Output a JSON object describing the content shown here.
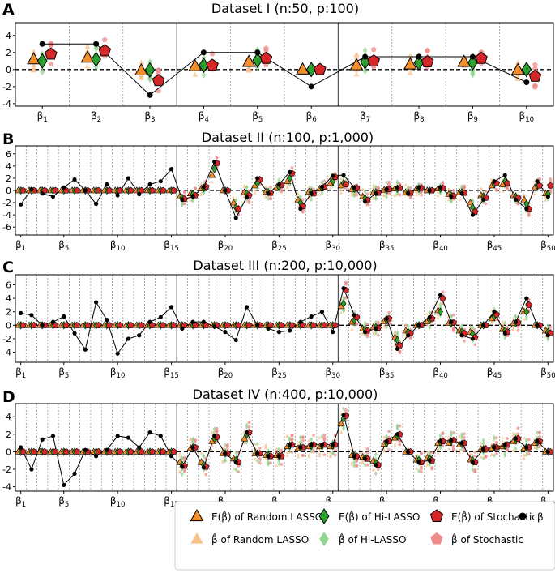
{
  "colors": {
    "random_lasso_mean": "#f28e2b",
    "random_lasso_est": "#f9c18c",
    "hi_lasso_mean": "#2ca02c",
    "hi_lasso_est": "#8fd48f",
    "stochastic_mean": "#d62728",
    "stochastic_est": "#f08a8a",
    "beta": "#000000"
  },
  "legend": [
    {
      "label": "E(β̂) of Random LASSO",
      "icon": "triangle-mean-icon",
      "series": "random_lasso_mean"
    },
    {
      "label": "E(β̂) of Hi-LASSO",
      "icon": "diamond-mean-icon",
      "series": "hi_lasso_mean"
    },
    {
      "label": "E(β̂) of Stochastic",
      "icon": "pentagon-mean-icon",
      "series": "stochastic_mean"
    },
    {
      "label": "β",
      "icon": "circle-icon",
      "series": "beta"
    },
    {
      "label": "β̂ of Random LASSO",
      "icon": "triangle-est-icon",
      "series": "random_lasso_est"
    },
    {
      "label": "β̂ of Hi-LASSO",
      "icon": "diamond-est-icon",
      "series": "hi_lasso_est"
    },
    {
      "label": "β̂ of Stochastic",
      "icon": "pentagon-est-icon",
      "series": "stochastic_est"
    }
  ],
  "chart_data": [
    {
      "panel": "A",
      "title": "Dataset I (n:50, p:100)",
      "type": "scatter",
      "n_coef": 10,
      "ylim": [
        -4.3,
        5.5
      ],
      "yticks": [
        -4,
        -2,
        0,
        2,
        4
      ],
      "xtick_indices": [
        1,
        2,
        3,
        4,
        5,
        6,
        7,
        8,
        9,
        10
      ],
      "group_separators_after": [
        3,
        6
      ],
      "beta": [
        3,
        3,
        -3,
        2,
        2,
        -2,
        1.5,
        1.5,
        1.5,
        -1.5
      ],
      "random_lasso_mean": [
        1.2,
        1.4,
        -0.1,
        0.4,
        0.9,
        0.0,
        0.5,
        0.6,
        0.9,
        -0.05
      ],
      "hi_lasso_mean": [
        1.0,
        1.2,
        -0.05,
        0.5,
        1.1,
        0.0,
        0.9,
        0.8,
        0.8,
        0.0
      ],
      "stochastic_mean": [
        1.8,
        2.2,
        -1.3,
        0.5,
        1.3,
        0.0,
        1.0,
        0.9,
        1.3,
        -0.8
      ]
    },
    {
      "panel": "B",
      "title": "Dataset II (n:100, p:1,000)",
      "type": "scatter",
      "n_coef": 50,
      "ylim": [
        -7.3,
        7.3
      ],
      "yticks": [
        -6,
        -4,
        -2,
        0,
        2,
        4,
        6
      ],
      "xtick_indices": [
        1,
        5,
        10,
        15,
        20,
        25,
        30,
        35,
        40,
        45,
        50
      ],
      "group_separators_after": [
        15,
        30
      ],
      "beta": [
        -2.3,
        0.2,
        -0.5,
        -1.0,
        0.5,
        1.8,
        0.0,
        -2.2,
        1.0,
        -0.8,
        2.0,
        -0.6,
        1.0,
        1.5,
        3.5,
        -1.5,
        -1.0,
        0.6,
        4.7,
        0.0,
        -4.5,
        -1.1,
        2.0,
        -0.5,
        1.0,
        3.0,
        -3.0,
        -0.5,
        0.6,
        2.4,
        2.5,
        0.5,
        -1.8,
        -0.5,
        0.2,
        0.5,
        -0.5,
        0.5,
        0.0,
        0.5,
        -1.0,
        -0.5,
        -4.0,
        -1.5,
        1.5,
        2.5,
        -1.5,
        -3.0,
        1.5,
        -1.0
      ],
      "random_lasso_mean": [
        0.0,
        0.0,
        0.0,
        0.0,
        0.0,
        0.0,
        0.0,
        0.0,
        0.0,
        0.0,
        0.0,
        0.0,
        0.0,
        0.0,
        0.0,
        -1.0,
        -0.5,
        0.3,
        2.5,
        0.0,
        -2.0,
        -0.3,
        0.8,
        -0.2,
        0.5,
        1.5,
        -1.5,
        -0.2,
        0.3,
        1.2,
        0.8,
        0.2,
        -1.0,
        -0.3,
        0.1,
        0.3,
        -0.3,
        0.3,
        0.0,
        0.3,
        -0.6,
        -0.3,
        -2.0,
        -0.8,
        0.8,
        1.0,
        -0.8,
        -1.5,
        0.5,
        -0.5
      ],
      "hi_lasso_mean": [
        0.0,
        0.0,
        0.0,
        0.0,
        0.0,
        0.0,
        0.0,
        0.0,
        0.0,
        0.0,
        0.0,
        0.0,
        0.0,
        0.0,
        0.0,
        -1.2,
        -0.6,
        0.4,
        3.5,
        0.0,
        -2.8,
        -0.5,
        1.2,
        -0.3,
        0.6,
        2.0,
        -2.0,
        -0.3,
        0.4,
        1.5,
        1.2,
        0.3,
        -1.3,
        -0.3,
        0.1,
        0.3,
        -0.3,
        0.3,
        0.0,
        0.3,
        -0.8,
        -0.3,
        -2.8,
        -1.0,
        1.0,
        1.5,
        -1.0,
        -2.2,
        0.8,
        -0.6
      ],
      "stochastic_mean": [
        0.0,
        0.0,
        0.0,
        0.0,
        0.0,
        0.0,
        0.0,
        0.0,
        0.0,
        0.0,
        0.0,
        0.0,
        0.0,
        0.0,
        0.0,
        -1.4,
        -0.8,
        0.6,
        4.5,
        0.0,
        -3.0,
        -0.8,
        1.8,
        -0.4,
        0.9,
        2.8,
        -2.6,
        -0.5,
        0.6,
        2.2,
        1.0,
        0.4,
        -1.6,
        -0.4,
        0.2,
        0.4,
        -0.4,
        0.4,
        0.0,
        0.4,
        -0.9,
        -0.4,
        -3.5,
        -1.2,
        1.2,
        1.2,
        -1.2,
        -3.0,
        0.8,
        0.8
      ]
    },
    {
      "panel": "C",
      "title": "Dataset III (n:200, p:10,000)",
      "type": "scatter",
      "n_coef": 50,
      "ylim": [
        -5.5,
        7.5
      ],
      "yticks": [
        -4,
        -2,
        0,
        2,
        4,
        6
      ],
      "xtick_indices": [
        1,
        5,
        10,
        15,
        20,
        25,
        30,
        35,
        40,
        45,
        50
      ],
      "group_separators_after": [
        15,
        30
      ],
      "beta": [
        1.8,
        1.5,
        0.0,
        0.5,
        1.3,
        -1.2,
        -3.6,
        3.4,
        0.8,
        -4.2,
        -2.0,
        -1.5,
        0.5,
        1.2,
        2.7,
        -0.5,
        0.5,
        0.5,
        -0.2,
        -1.0,
        -2.2,
        2.7,
        0.0,
        -0.5,
        -1.0,
        -0.8,
        0.5,
        1.3,
        2.0,
        -1.0,
        5.5,
        1.5,
        -1.0,
        -0.5,
        1.0,
        -3.5,
        -1.5,
        0.0,
        1.2,
        4.5,
        0.5,
        -1.5,
        -2.0,
        0.0,
        2.0,
        -1.2,
        0.5,
        4.0,
        0.0,
        -1.5
      ],
      "random_lasso_mean": [
        0.0,
        0.0,
        0.0,
        0.0,
        0.0,
        0.0,
        0.0,
        0.0,
        0.0,
        0.0,
        0.0,
        0.0,
        0.0,
        0.0,
        0.0,
        0.0,
        0.0,
        0.0,
        0.0,
        0.0,
        0.0,
        0.0,
        0.0,
        0.0,
        0.0,
        0.0,
        0.0,
        0.0,
        0.0,
        0.0,
        2.8,
        0.5,
        -0.5,
        -0.3,
        0.6,
        -1.8,
        -0.8,
        0.0,
        0.6,
        2.2,
        0.3,
        -0.8,
        -1.0,
        0.0,
        1.0,
        -0.6,
        0.3,
        2.0,
        0.0,
        -0.8
      ],
      "hi_lasso_mean": [
        0.0,
        0.0,
        0.0,
        0.0,
        0.0,
        0.0,
        0.0,
        0.0,
        0.0,
        0.0,
        0.0,
        0.0,
        0.0,
        0.0,
        0.0,
        0.0,
        0.0,
        0.0,
        0.0,
        0.0,
        0.0,
        0.0,
        0.0,
        0.0,
        0.0,
        0.0,
        0.0,
        0.0,
        0.0,
        0.0,
        3.2,
        0.8,
        -0.6,
        -0.3,
        0.8,
        -2.2,
        -1.0,
        0.0,
        0.8,
        2.0,
        0.3,
        -1.0,
        -1.3,
        0.0,
        1.3,
        -0.8,
        0.3,
        2.0,
        0.0,
        -1.0
      ],
      "stochastic_mean": [
        0.0,
        0.0,
        0.0,
        0.0,
        0.0,
        0.0,
        0.0,
        0.0,
        0.0,
        0.0,
        0.0,
        0.0,
        0.0,
        0.0,
        0.0,
        0.0,
        0.0,
        0.0,
        0.0,
        0.0,
        0.0,
        0.0,
        0.0,
        0.0,
        0.0,
        0.0,
        0.0,
        0.0,
        0.0,
        0.0,
        5.2,
        1.2,
        -0.8,
        -0.4,
        1.0,
        -3.0,
        -1.2,
        0.0,
        1.0,
        4.0,
        0.4,
        -1.2,
        -1.8,
        0.0,
        1.6,
        -1.0,
        0.4,
        3.0,
        0.0,
        -1.2
      ]
    },
    {
      "panel": "D",
      "title": "Dataset IV (n:400, p:10,000)",
      "type": "scatter",
      "n_coef": 50,
      "ylim": [
        -4.5,
        5.5
      ],
      "yticks": [
        -4,
        -2,
        0,
        2,
        4
      ],
      "xtick_indices": [
        1,
        5,
        10,
        15,
        20,
        25,
        30,
        35,
        40,
        45,
        50
      ],
      "group_separators_after": [
        15,
        30
      ],
      "beta": [
        0.5,
        -2.0,
        1.4,
        1.8,
        -3.8,
        -2.5,
        0.2,
        -0.5,
        0.2,
        1.8,
        1.6,
        0.5,
        2.2,
        1.8,
        -0.5,
        -1.7,
        0.5,
        -1.8,
        1.8,
        -0.2,
        -1.2,
        2.2,
        -0.2,
        -0.5,
        -0.5,
        0.8,
        0.5,
        0.8,
        0.8,
        0.8,
        4.2,
        -0.5,
        -0.8,
        -1.5,
        1.2,
        2.0,
        0.0,
        -1.2,
        -1.0,
        1.2,
        1.3,
        1.0,
        -1.2,
        0.3,
        0.5,
        0.8,
        1.5,
        0.5,
        1.2,
        0.0
      ],
      "random_lasso_mean": [
        0.0,
        0.0,
        0.0,
        0.0,
        0.0,
        0.0,
        0.0,
        0.0,
        0.0,
        0.0,
        0.0,
        0.0,
        0.0,
        0.0,
        0.0,
        -1.2,
        0.4,
        -1.2,
        1.2,
        -0.2,
        -0.8,
        1.5,
        -0.2,
        -0.4,
        -0.4,
        0.6,
        0.4,
        0.6,
        0.6,
        0.6,
        3.2,
        -0.4,
        -0.6,
        -1.0,
        0.9,
        1.6,
        0.0,
        -0.9,
        -0.7,
        1.0,
        1.0,
        0.8,
        -0.9,
        0.3,
        0.4,
        0.6,
        1.2,
        0.4,
        1.0,
        0.0
      ],
      "hi_lasso_mean": [
        0.0,
        0.0,
        0.0,
        0.0,
        0.0,
        0.0,
        0.0,
        0.0,
        0.0,
        0.0,
        0.0,
        0.0,
        0.0,
        0.0,
        0.0,
        -1.5,
        0.5,
        -1.5,
        1.5,
        -0.2,
        -1.0,
        2.0,
        -0.2,
        -0.4,
        -0.5,
        0.7,
        0.5,
        0.7,
        0.7,
        0.7,
        3.8,
        -0.5,
        -0.7,
        -1.3,
        1.0,
        1.8,
        0.0,
        -1.0,
        -0.8,
        1.1,
        1.2,
        0.9,
        -1.0,
        0.3,
        0.5,
        0.7,
        1.4,
        0.5,
        1.1,
        0.0
      ],
      "stochastic_mean": [
        0.0,
        0.0,
        0.0,
        0.0,
        0.0,
        0.0,
        0.0,
        0.0,
        0.0,
        0.0,
        0.0,
        0.0,
        0.0,
        0.0,
        0.0,
        -1.6,
        0.5,
        -1.7,
        1.7,
        -0.2,
        -1.2,
        2.2,
        -0.2,
        -0.5,
        -0.5,
        0.8,
        0.5,
        0.8,
        0.8,
        0.8,
        4.1,
        -0.5,
        -0.8,
        -1.5,
        1.2,
        2.0,
        0.0,
        -1.2,
        -1.0,
        1.2,
        1.3,
        1.0,
        -1.2,
        0.3,
        0.5,
        0.8,
        1.5,
        0.5,
        1.2,
        0.0
      ]
    }
  ]
}
